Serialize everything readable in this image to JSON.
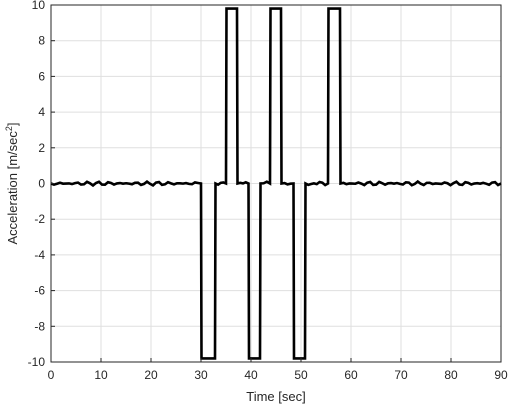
{
  "chart_data": {
    "type": "line",
    "title": "",
    "xlabel": "Time [sec]",
    "ylabel_main": "Acceleration [m/sec",
    "ylabel_sup": "2",
    "ylabel_end": "]",
    "xlim": [
      0,
      90
    ],
    "ylim": [
      -10,
      10
    ],
    "xticks": [
      0,
      10,
      20,
      30,
      40,
      50,
      60,
      70,
      80,
      90
    ],
    "yticks": [
      -10,
      -8,
      -6,
      -4,
      -2,
      0,
      2,
      4,
      6,
      8,
      10
    ],
    "xtick_labels": [
      "0",
      "10",
      "20",
      "30",
      "40",
      "50",
      "60",
      "70",
      "80",
      "90"
    ],
    "ytick_labels": [
      "-10",
      "-8",
      "-6",
      "-4",
      "-2",
      "0",
      "2",
      "4",
      "6",
      "8",
      "10"
    ],
    "grid": true,
    "color": "#000000",
    "series": [
      {
        "x": [
          0,
          30,
          30.1,
          32.8,
          32.9,
          35,
          35.1,
          37.2,
          37.3,
          39.5,
          39.6,
          41.8,
          41.9,
          43.8,
          43.9,
          46,
          46.1,
          48.5,
          48.6,
          50.8,
          50.9,
          55.4,
          55.5,
          57.8,
          57.9,
          90
        ],
        "y": [
          0,
          0,
          -9.8,
          -9.8,
          0,
          0,
          9.8,
          9.8,
          0,
          0,
          -9.8,
          -9.8,
          0,
          0,
          9.8,
          9.8,
          0,
          0,
          -9.8,
          -9.8,
          0,
          0,
          9.8,
          9.8,
          0,
          0
        ]
      }
    ]
  }
}
